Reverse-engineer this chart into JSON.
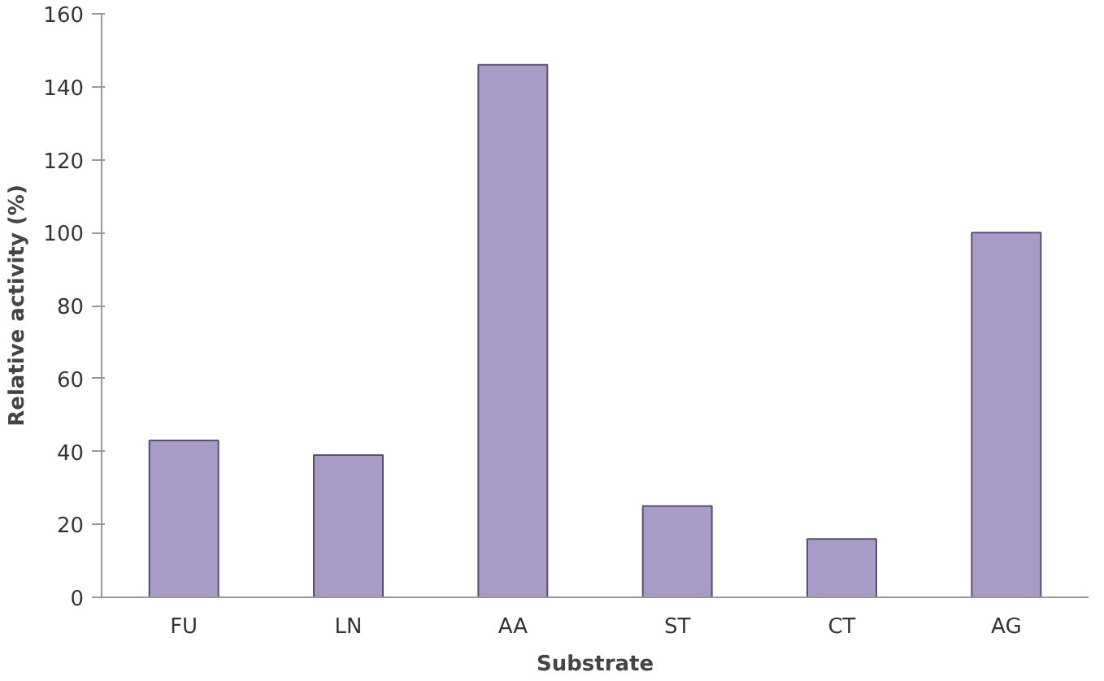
{
  "chart_data": {
    "type": "bar",
    "xlabel": "Substrate",
    "ylabel": "Relative activity (%)",
    "categories": [
      "FU",
      "LN",
      "AA",
      "ST",
      "CT",
      "AG"
    ],
    "values": [
      43,
      39,
      146,
      25,
      16,
      100
    ],
    "color": "#a99bc8",
    "ylim": [
      0,
      160
    ],
    "yticks": [
      0,
      20,
      40,
      60,
      80,
      100,
      120,
      140,
      160
    ],
    "grid": false
  }
}
